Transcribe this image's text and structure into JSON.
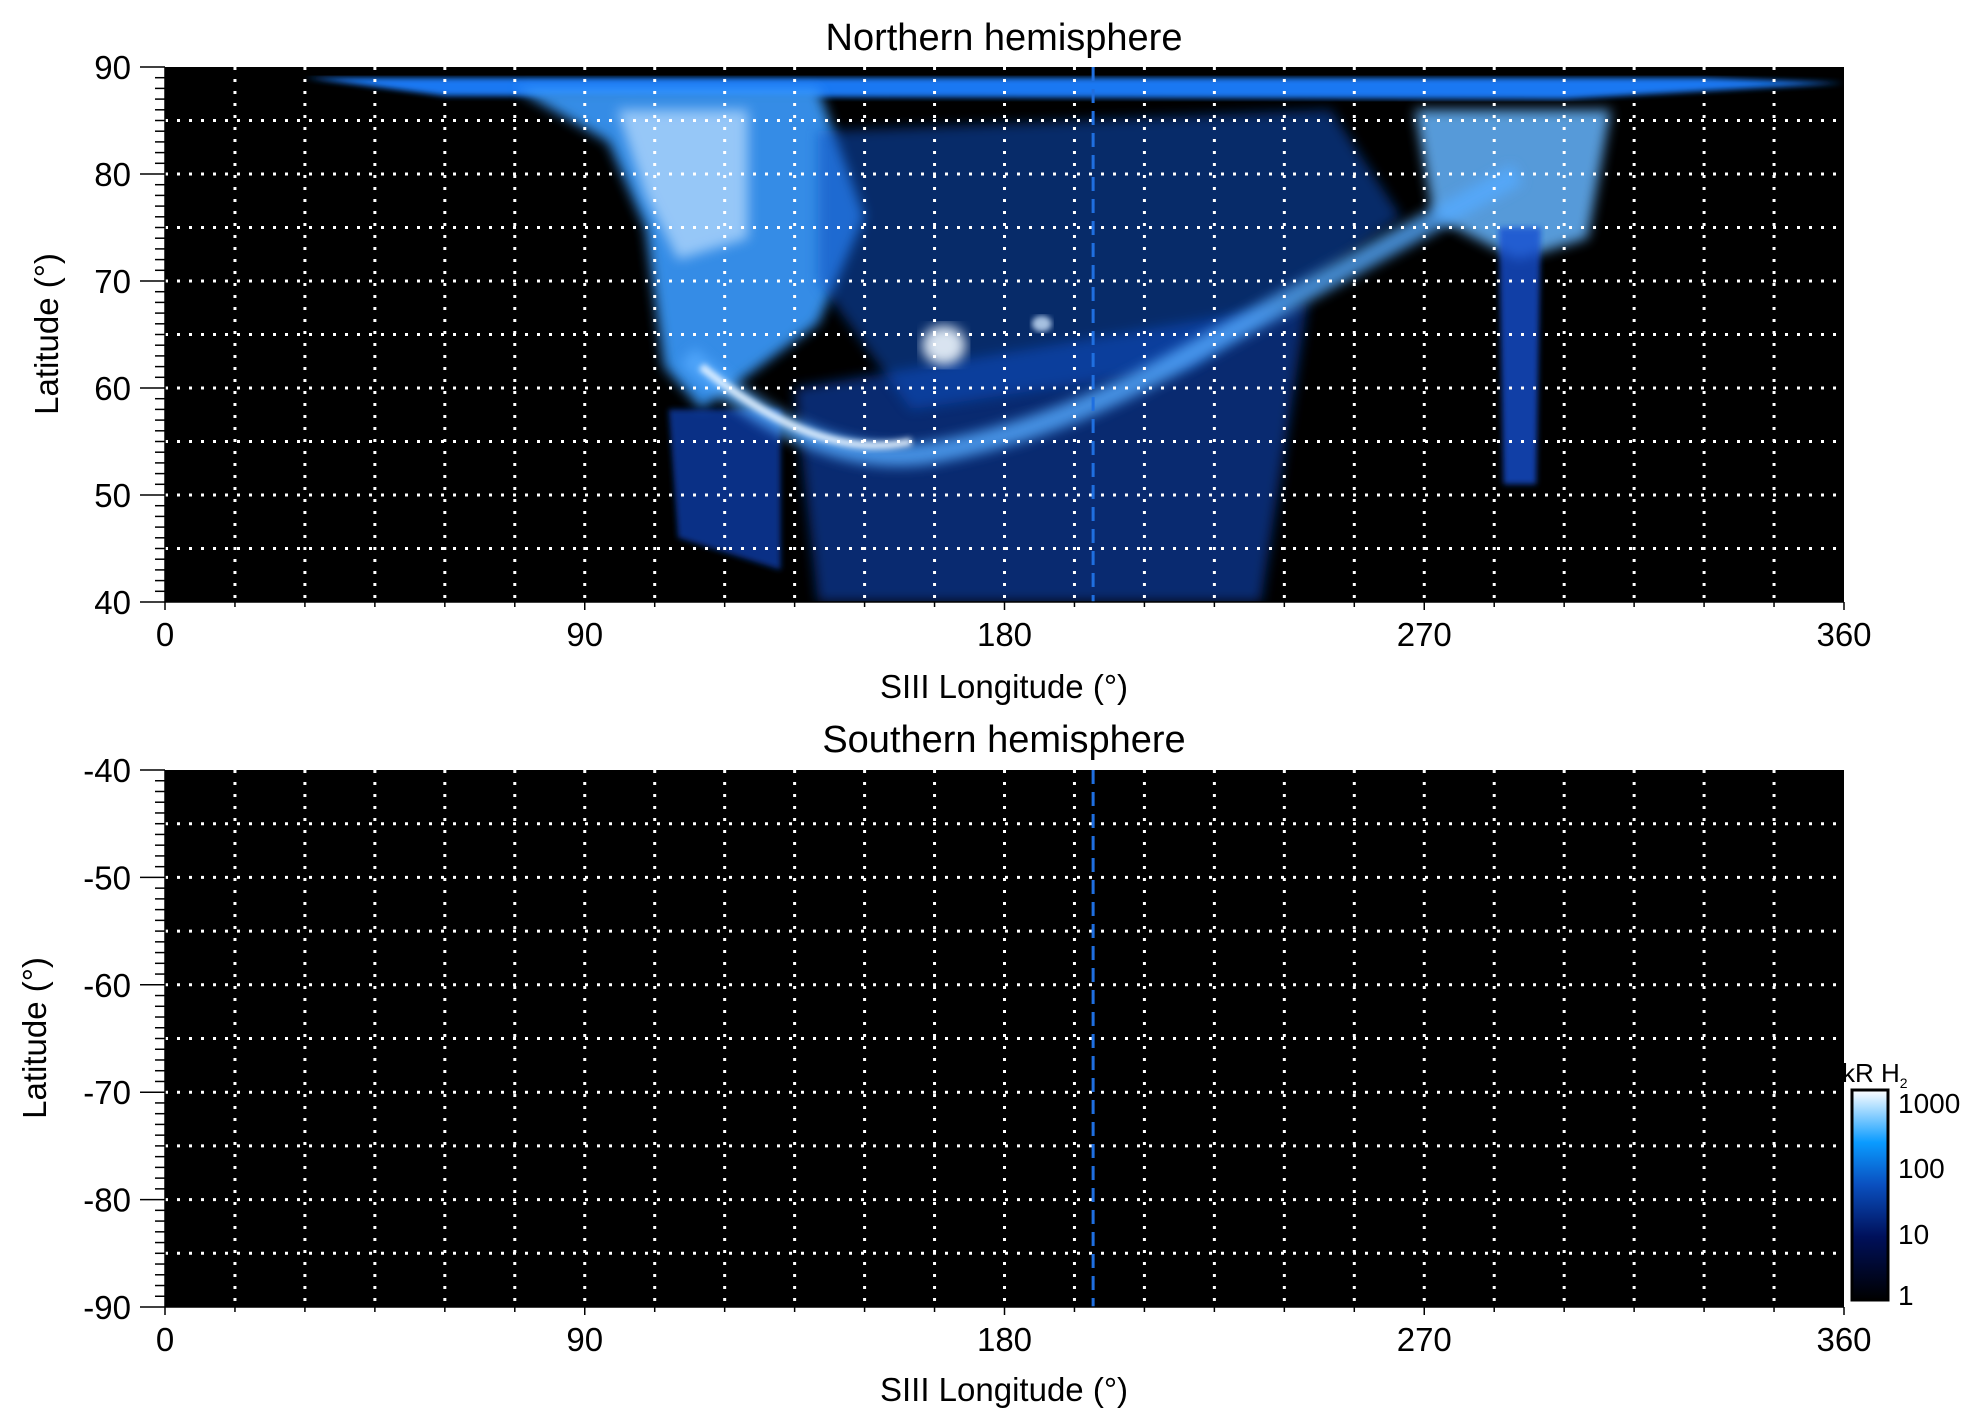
{
  "chart_data": [
    {
      "type": "heatmap",
      "title": "Northern hemisphere",
      "xlabel": "SIII Longitude (°)",
      "ylabel": "Latitude (°)",
      "xlim": [
        0,
        360
      ],
      "ylim": [
        40,
        90
      ],
      "xticks": [
        "0",
        "90",
        "180",
        "270",
        "360"
      ],
      "yticks": [
        "90",
        "80",
        "70",
        "60",
        "50",
        "40"
      ],
      "grid": true,
      "grid_spacing": {
        "longitude": 15,
        "latitude": 5
      },
      "reference_line_longitude": 199,
      "reference_line_color": "#1f6fe0"
    },
    {
      "type": "heatmap",
      "title": "Southern hemisphere",
      "xlabel": "SIII Longitude (°)",
      "ylabel": "Latitude (°)",
      "xlim": [
        0,
        360
      ],
      "ylim": [
        -90,
        -40
      ],
      "xticks": [
        "0",
        "90",
        "180",
        "270",
        "360"
      ],
      "yticks": [
        "-40",
        "-50",
        "-60",
        "-70",
        "-80",
        "-90"
      ],
      "grid": true,
      "grid_spacing": {
        "longitude": 15,
        "latitude": 5
      },
      "reference_line_longitude": 199,
      "reference_line_color": "#1f6fe0"
    }
  ],
  "colorbar": {
    "label": "kR H",
    "label_subscript": "2",
    "scale": "log",
    "range": [
      1,
      1000
    ],
    "ticks": [
      "1000",
      "100",
      "10",
      "1"
    ],
    "colors": [
      "#000000",
      "#00105a",
      "#0a50c0",
      "#0a9bff",
      "#ffffff"
    ]
  }
}
